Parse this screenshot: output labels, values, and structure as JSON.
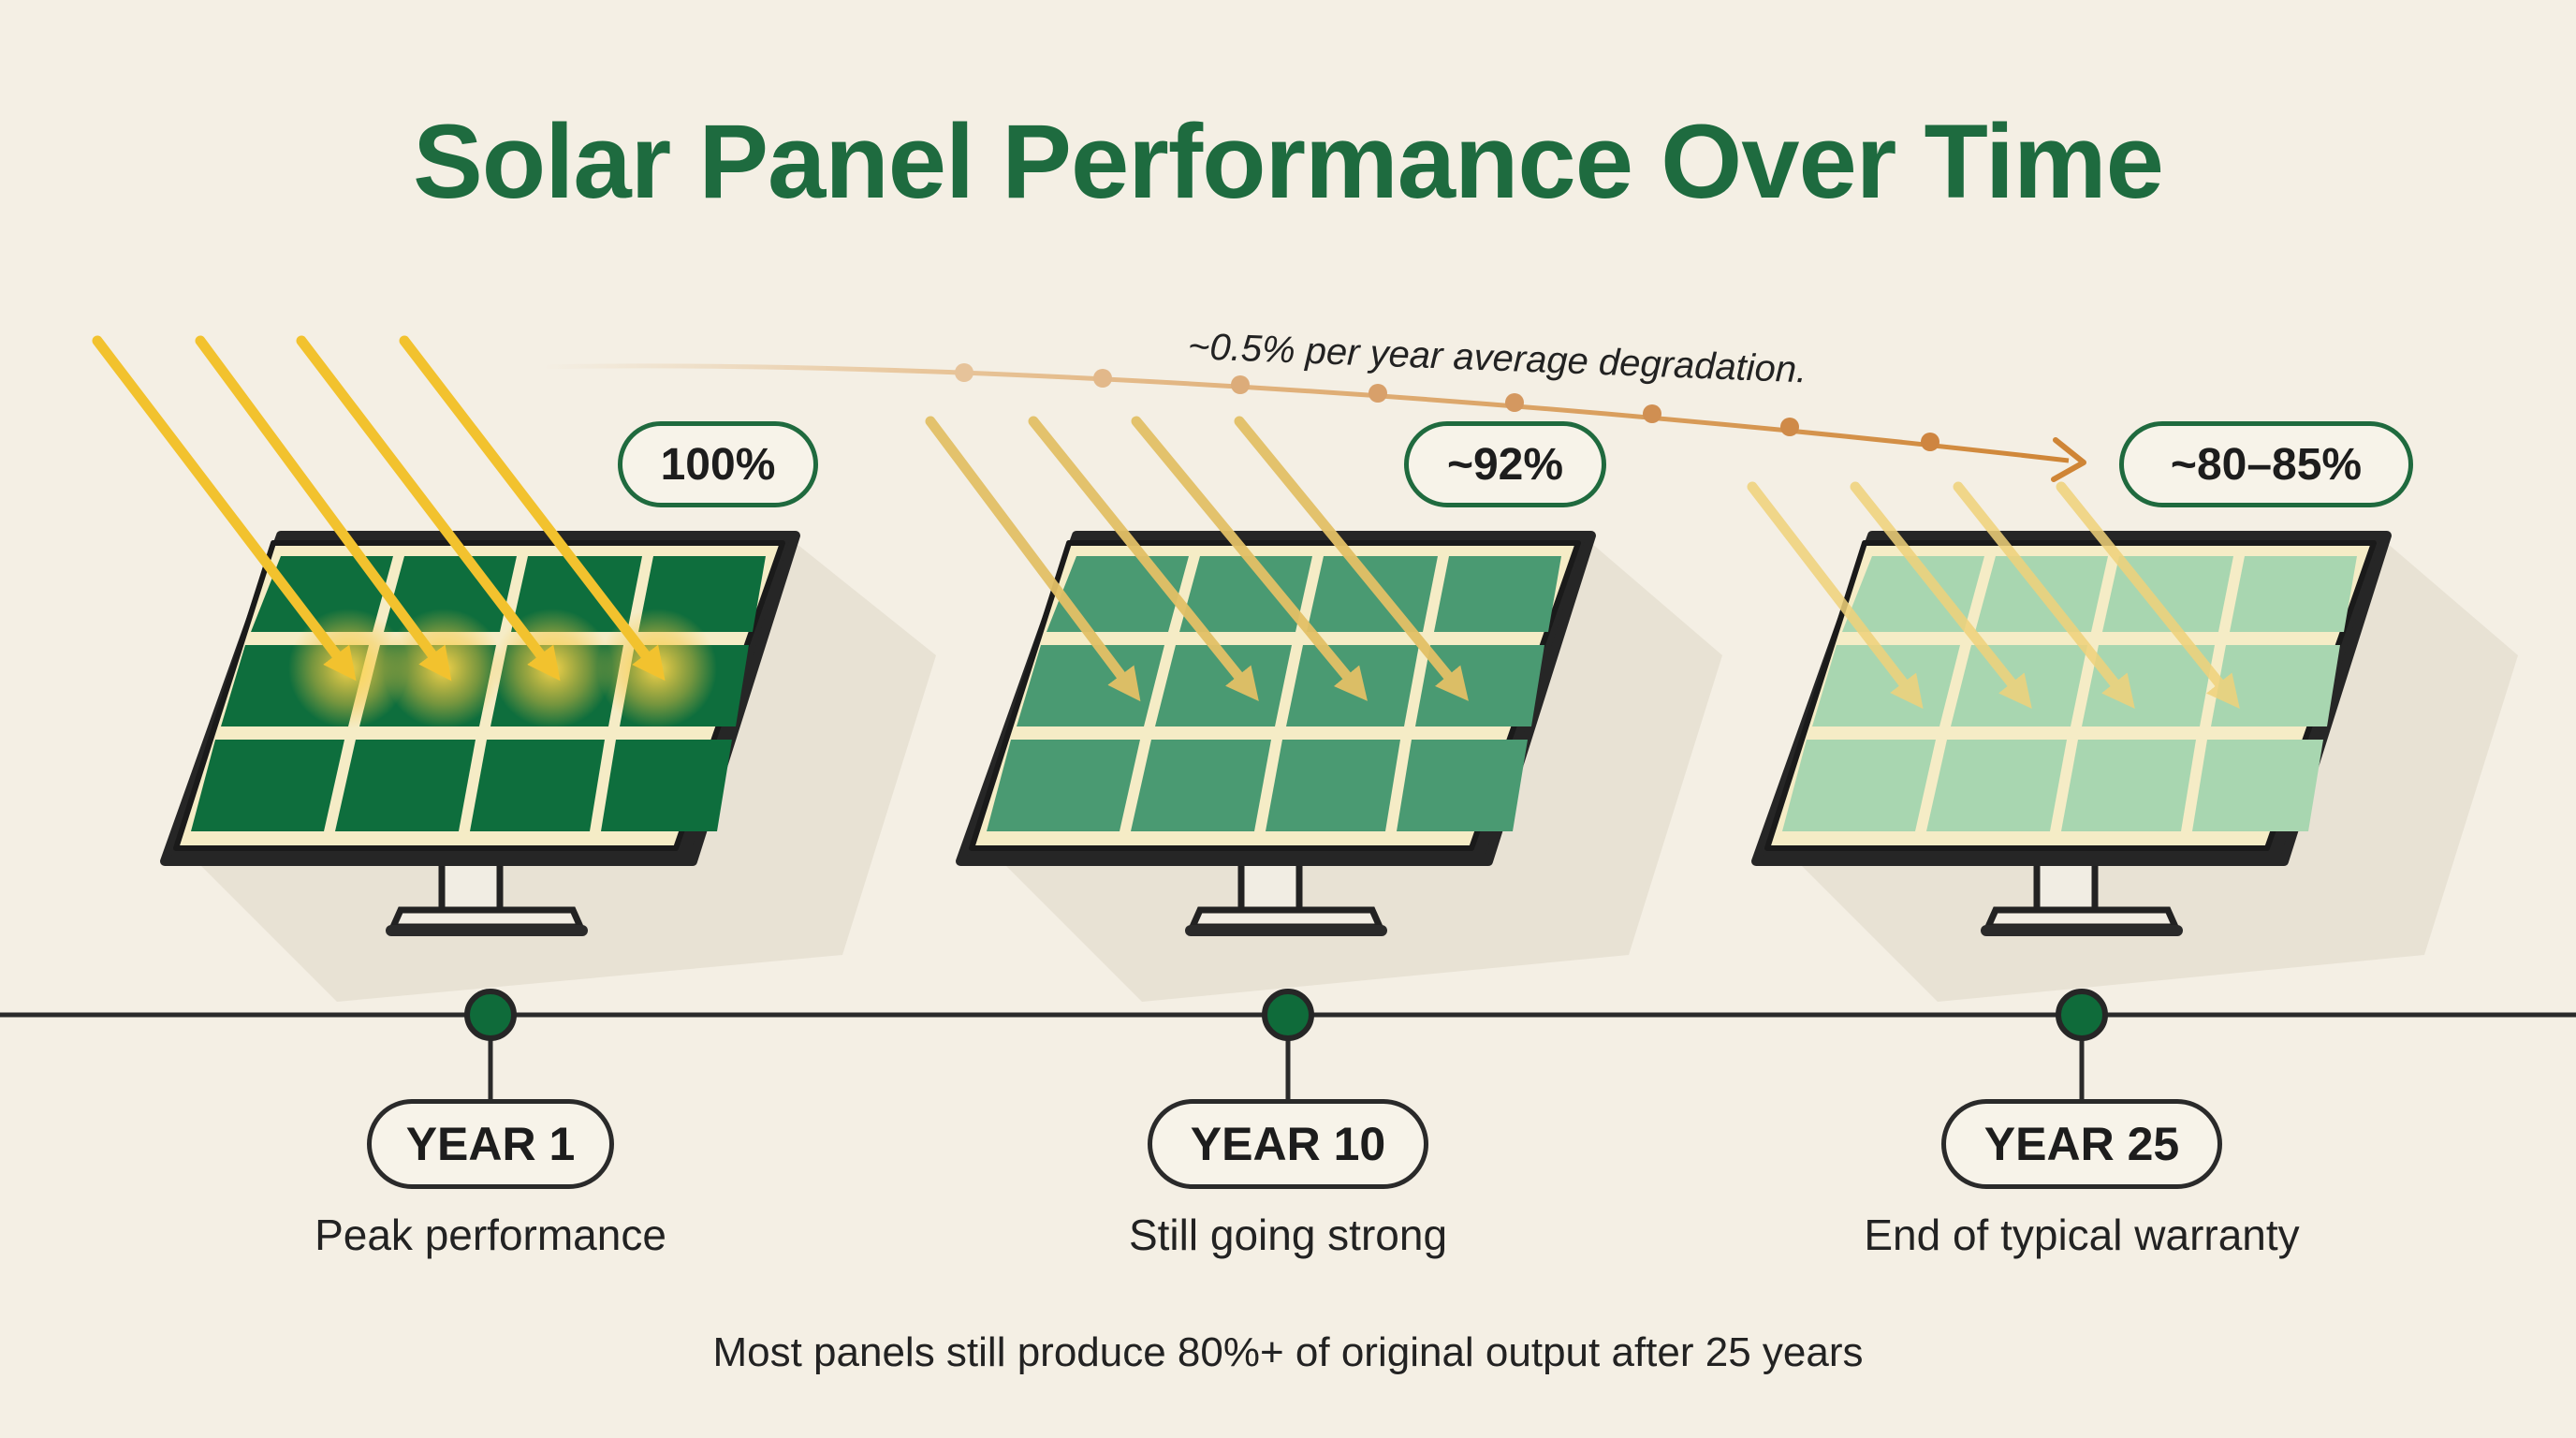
{
  "title": "Solar Panel Performance Over Time",
  "degradation_note": "~0.5% per year average degradation.",
  "stages": [
    {
      "percent": "100%",
      "year": "YEAR 1",
      "caption": "Peak performance"
    },
    {
      "percent": "~92%",
      "year": "YEAR 10",
      "caption": "Still going strong"
    },
    {
      "percent": "~80–85%",
      "year": "YEAR 25",
      "caption": "End of typical warranty"
    }
  ],
  "footer": "Most panels still produce 80%+ of original output after 25 years",
  "colors": {
    "title": "#1e6b3f",
    "panel_year1": "#0e6e3d",
    "panel_year10": "#4a9a72",
    "panel_year25": "#a8d6b0",
    "sun_ray": "#f3c43a",
    "trend_line": "#d0873b",
    "timeline_dot": "#0f6b3a",
    "background": "#f4efe4"
  }
}
